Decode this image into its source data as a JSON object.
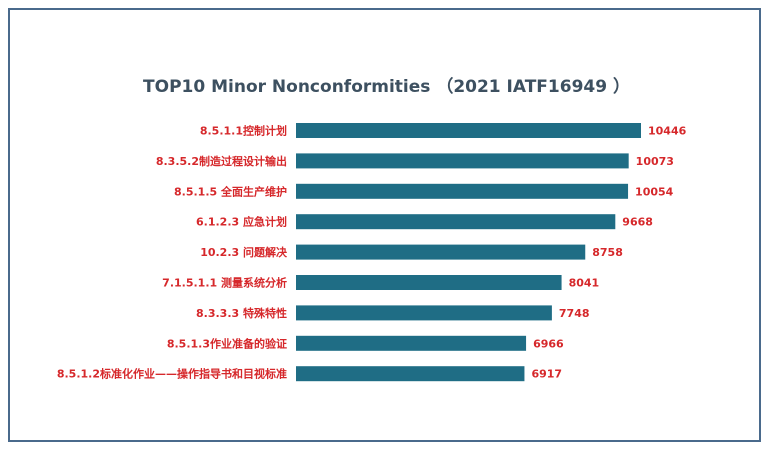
{
  "chart_data": {
    "type": "bar",
    "orientation": "horizontal",
    "title": "TOP10 Minor Nonconformities （2021 IATF16949 ）",
    "categories": [
      "8.5.1.1控制计划",
      "8.3.5.2制造过程设计输出",
      "8.5.1.5 全面生产维护",
      "6.1.2.3 应急计划",
      "10.2.3 问题解决",
      "7.1.5.1.1 测量系统分析",
      "8.3.3.3 特殊特性",
      "8.5.1.3作业准备的验证",
      "8.5.1.2标准化作业——操作指导书和目视标准"
    ],
    "values": [
      10446,
      10073,
      10054,
      9668,
      8758,
      8041,
      7748,
      6966,
      6917
    ],
    "xlim": [
      0,
      10446
    ],
    "grid": false,
    "colors": {
      "bar": "#1f6d85",
      "label": "#d6282b",
      "title": "#3d5060",
      "frame": "#4a6a8c"
    }
  }
}
